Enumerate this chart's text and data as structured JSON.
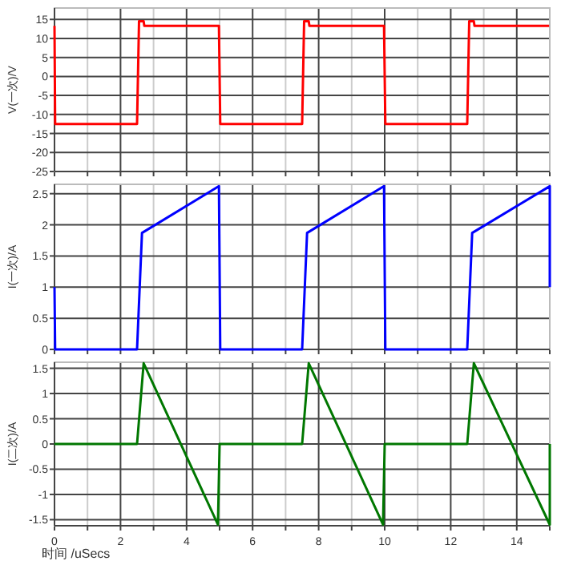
{
  "chart_data": [
    {
      "type": "line",
      "ylabel": "V(一次)/V",
      "xlim": [
        0,
        15
      ],
      "ylim": [
        -25,
        18
      ],
      "xticks": [
        0,
        {
          "value": 1,
          "label": null
        },
        2,
        {
          "value": 3,
          "label": null
        },
        4,
        {
          "value": 5,
          "label": null
        },
        6,
        {
          "value": 7,
          "label": null
        },
        8,
        {
          "value": 9,
          "label": null
        },
        10,
        {
          "value": 11,
          "label": null
        },
        12,
        {
          "value": 13,
          "label": null
        },
        14,
        {
          "value": 15,
          "label": null
        }
      ],
      "yticks": [
        -25,
        -20,
        -15,
        -10,
        -5,
        0,
        5,
        10,
        15
      ],
      "grid": true,
      "tick_labels": "y",
      "series": [
        {
          "color": "#ff0000",
          "x": [
            0,
            0.02,
            2.5,
            2.56,
            2.7,
            2.72,
            4.98,
            5.02,
            7.5,
            7.56,
            7.7,
            7.72,
            9.98,
            10.02,
            12.5,
            12.56,
            12.7,
            12.72,
            14.98
          ],
          "values": [
            13.3,
            -12.5,
            -12.5,
            14.5,
            14.5,
            13.3,
            13.3,
            -12.5,
            -12.5,
            14.5,
            14.5,
            13.3,
            13.3,
            -12.5,
            -12.5,
            14.5,
            14.5,
            13.3,
            13.3
          ]
        }
      ]
    },
    {
      "type": "line",
      "ylabel": "I(一次)/A",
      "xlim": [
        0,
        15
      ],
      "ylim": [
        0,
        2.65
      ],
      "xticks": [
        0,
        {
          "value": 1,
          "label": null
        },
        2,
        {
          "value": 3,
          "label": null
        },
        4,
        {
          "value": 5,
          "label": null
        },
        6,
        {
          "value": 7,
          "label": null
        },
        8,
        {
          "value": 9,
          "label": null
        },
        10,
        {
          "value": 11,
          "label": null
        },
        12,
        {
          "value": 13,
          "label": null
        },
        14,
        {
          "value": 15,
          "label": null
        }
      ],
      "yticks": [
        0,
        0.5,
        1,
        1.5,
        2,
        2.5
      ],
      "grid": true,
      "tick_labels": "y",
      "series": [
        {
          "color": "#0000ff",
          "x": [
            0,
            0.02,
            2.5,
            2.65,
            4.98,
            5.02,
            7.5,
            7.65,
            9.98,
            10.02,
            12.5,
            12.65,
            15,
            15
          ],
          "values": [
            1,
            0,
            0,
            1.87,
            2.62,
            0,
            0,
            1.87,
            2.62,
            0,
            0,
            1.87,
            2.62,
            1
          ]
        }
      ]
    },
    {
      "type": "line",
      "ylabel": "I(二次)/A",
      "xlabel": "时间 /uSecs",
      "xlim": [
        0,
        15
      ],
      "ylim": [
        -1.62,
        1.62
      ],
      "xticks": [
        0,
        {
          "value": 1,
          "label": null
        },
        2,
        {
          "value": 3,
          "label": null
        },
        4,
        {
          "value": 5,
          "label": null
        },
        6,
        {
          "value": 7,
          "label": null
        },
        8,
        {
          "value": 9,
          "label": null
        },
        10,
        {
          "value": 11,
          "label": null
        },
        12,
        {
          "value": 13,
          "label": null
        },
        14,
        {
          "value": 15,
          "label": null
        }
      ],
      "yticks": [
        -1.5,
        -1,
        -0.5,
        0,
        0.5,
        1,
        1.5
      ],
      "grid": true,
      "series": [
        {
          "color": "#007700",
          "x": [
            0,
            2.5,
            2.7,
            4.95,
            5.0,
            7.5,
            7.7,
            9.95,
            10.0,
            12.5,
            12.7,
            15,
            15
          ],
          "values": [
            0,
            0,
            1.6,
            -1.6,
            0,
            0,
            1.6,
            -1.6,
            0,
            0,
            1.6,
            -1.6,
            0
          ]
        }
      ]
    }
  ]
}
